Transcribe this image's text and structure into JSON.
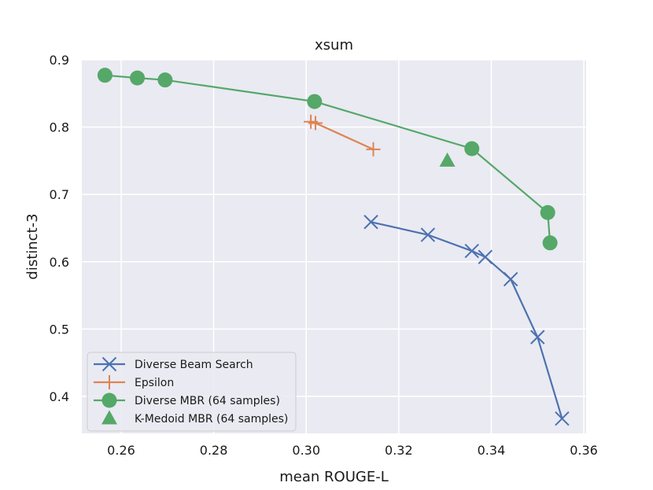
{
  "chart_data": {
    "type": "line",
    "title": "xsum",
    "xlabel": "mean ROUGE-L",
    "ylabel": "distinct-3",
    "xlim": [
      0.2515,
      0.3605
    ],
    "ylim": [
      0.345,
      0.9
    ],
    "xticks": [
      0.26,
      0.28,
      0.3,
      0.32,
      0.34,
      0.36
    ],
    "xtick_labels": [
      "0.26",
      "0.28",
      "0.30",
      "0.32",
      "0.34",
      "0.36"
    ],
    "yticks": [
      0.4,
      0.5,
      0.6,
      0.7,
      0.8,
      0.9
    ],
    "ytick_labels": [
      "0.4",
      "0.5",
      "0.6",
      "0.7",
      "0.8",
      "0.9"
    ],
    "grid": true,
    "legend_position": "lower-left",
    "series": [
      {
        "name": "Diverse Beam Search",
        "color": "#4c72b0",
        "marker": "x",
        "line": true,
        "points": [
          [
            0.314,
            0.659
          ],
          [
            0.3263,
            0.64
          ],
          [
            0.3358,
            0.616
          ],
          [
            0.3387,
            0.607
          ],
          [
            0.3442,
            0.574
          ],
          [
            0.35,
            0.488
          ],
          [
            0.3553,
            0.367
          ]
        ]
      },
      {
        "name": "Epsilon",
        "color": "#dd8452",
        "marker": "+",
        "line": true,
        "points": [
          [
            0.301,
            0.808
          ],
          [
            0.302,
            0.806
          ],
          [
            0.3145,
            0.767
          ]
        ]
      },
      {
        "name": "Diverse MBR (64 samples)",
        "color": "#55a868",
        "marker": "circle",
        "line": true,
        "points": [
          [
            0.2565,
            0.877
          ],
          [
            0.2635,
            0.873
          ],
          [
            0.2695,
            0.87
          ],
          [
            0.3018,
            0.838
          ],
          [
            0.3358,
            0.768
          ],
          [
            0.3522,
            0.673
          ],
          [
            0.3527,
            0.628
          ]
        ]
      },
      {
        "name": "K-Medoid MBR (64 samples)",
        "color": "#55a868",
        "marker": "triangle",
        "line": false,
        "points": [
          [
            0.3305,
            0.75
          ]
        ]
      }
    ]
  }
}
